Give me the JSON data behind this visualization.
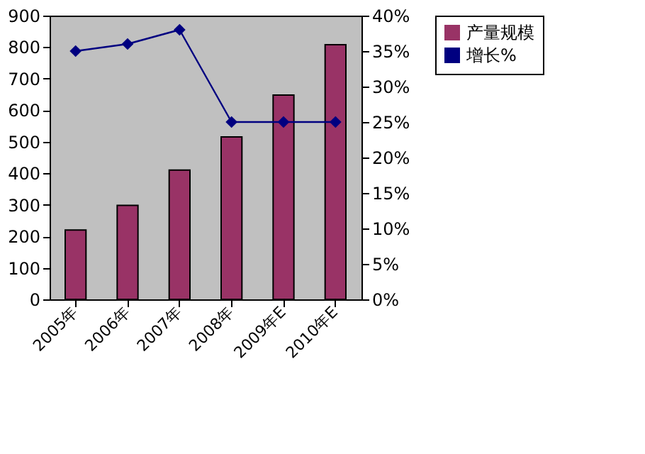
{
  "chart_data": {
    "type": "bar",
    "categories": [
      "2005年",
      "2006年",
      "2007年",
      "2008年",
      "2009年E",
      "2010年E"
    ],
    "series": [
      {
        "name": "产量规模",
        "color": "#993366",
        "values": [
          220,
          298,
          410,
          515,
          648,
          808
        ]
      },
      {
        "name": "增长%",
        "color": "#000080",
        "type": "line",
        "axis": "y2",
        "marker": "diamond",
        "values": [
          35,
          36,
          38,
          25,
          25,
          25
        ]
      }
    ],
    "ylim": [
      0,
      900
    ],
    "yticks": [
      0,
      100,
      200,
      300,
      400,
      500,
      600,
      700,
      800,
      900
    ],
    "y2lim": [
      0,
      40
    ],
    "y2ticks": [
      {
        "value": 0,
        "label": "0%"
      },
      {
        "value": 5,
        "label": "5%"
      },
      {
        "value": 10,
        "label": "10%"
      },
      {
        "value": 15,
        "label": "15%"
      },
      {
        "value": 20,
        "label": "20%"
      },
      {
        "value": 25,
        "label": "25%"
      },
      {
        "value": 30,
        "label": "30%"
      },
      {
        "value": 35,
        "label": "35%"
      },
      {
        "value": 40,
        "label": "40%"
      }
    ],
    "grid": false,
    "legend": "right"
  }
}
